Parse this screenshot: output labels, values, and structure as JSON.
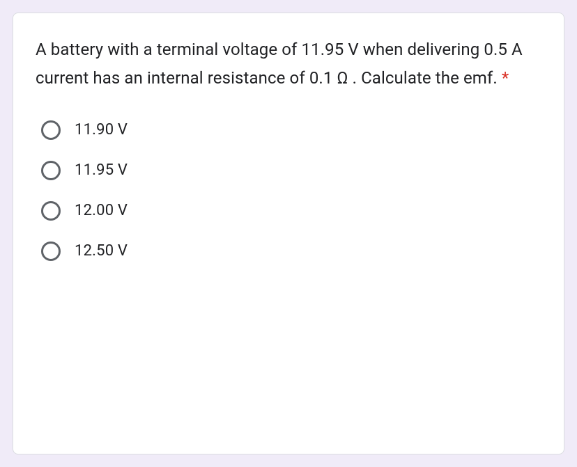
{
  "question": {
    "text": "A battery with a terminal voltage of 11.95 V when delivering 0.5 A current has an internal resistance of 0.1 Ω . Calculate the emf. ",
    "required_marker": "*",
    "text_color": "#202124",
    "asterisk_color": "#d93025",
    "fontsize": 24
  },
  "options": [
    {
      "label": "11.90 V"
    },
    {
      "label": "11.95 V"
    },
    {
      "label": "12.00 V"
    },
    {
      "label": "12.50 V"
    }
  ],
  "styling": {
    "card_background": "#ffffff",
    "page_background": "#f0ebf8",
    "border_color": "#dadce0",
    "radio_border_color": "#5f6368",
    "option_fontsize": 22,
    "border_radius": 8
  }
}
